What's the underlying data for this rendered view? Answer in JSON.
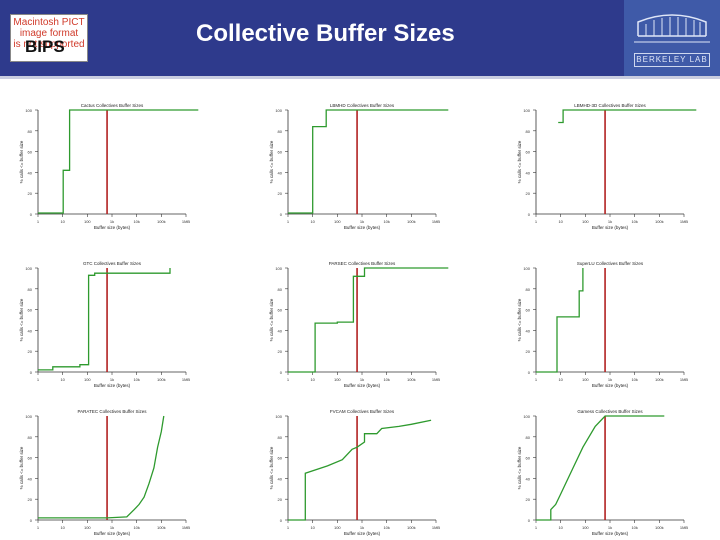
{
  "header": {
    "title": "Collective Buffer Sizes",
    "bips_logo": {
      "placeholder_lines": [
        "Macintosh PICT",
        "image format",
        "is not supported"
      ],
      "text": "BIPS"
    },
    "lab_logo": {
      "text": "BERKELEY LAB"
    }
  },
  "colors": {
    "header_bg": "#2e3a8c",
    "series": "#2e9a2e",
    "marker": "#b22222"
  },
  "chart_data": [
    {
      "type": "line",
      "title": "Cactus Collectives Buffer Sizes",
      "xlabel": "Buffer size (bytes)",
      "ylabel": "% calls <= buffer size",
      "x_ticks": [
        "1",
        "10",
        "100",
        "1k",
        "10k",
        "100k",
        "1MB"
      ],
      "y_ticks": [
        "0",
        "20",
        "40",
        "60",
        "80",
        "100"
      ],
      "ylim": [
        0,
        100
      ],
      "marker_x": 2.8,
      "series": [
        {
          "values": [
            [
              0,
              1
            ],
            [
              1.02,
              1
            ],
            [
              1.02,
              42
            ],
            [
              1.28,
              42
            ],
            [
              1.28,
              100
            ],
            [
              6.5,
              100
            ]
          ]
        }
      ]
    },
    {
      "type": "line",
      "title": "LBMHD Collectives Buffer Sizes",
      "xlabel": "Buffer size (bytes)",
      "ylabel": "% calls <= buffer size",
      "x_ticks": [
        "1",
        "10",
        "100",
        "1k",
        "10k",
        "100k",
        "1MB"
      ],
      "y_ticks": [
        "0",
        "20",
        "40",
        "60",
        "80",
        "100"
      ],
      "ylim": [
        0,
        100
      ],
      "marker_x": 2.8,
      "series": [
        {
          "values": [
            [
              0,
              1
            ],
            [
              1.0,
              1
            ],
            [
              1.0,
              84
            ],
            [
              1.55,
              84
            ],
            [
              1.55,
              100
            ],
            [
              6.5,
              100
            ]
          ]
        }
      ]
    },
    {
      "type": "line",
      "title": "LBMHD-3D Collectives Buffer Sizes",
      "xlabel": "Buffer size (bytes)",
      "ylabel": "% calls <= buffer size",
      "x_ticks": [
        "1",
        "10",
        "100",
        "1k",
        "10k",
        "100k",
        "1MB"
      ],
      "y_ticks": [
        "0",
        "20",
        "40",
        "60",
        "80",
        "100"
      ],
      "ylim": [
        0,
        100
      ],
      "marker_x": 2.8,
      "series": [
        {
          "values": [
            [
              0.9,
              88
            ],
            [
              1.1,
              88
            ],
            [
              1.1,
              100
            ],
            [
              6.5,
              100
            ]
          ]
        }
      ]
    },
    {
      "type": "line",
      "title": "GTC Collectives Buffer Sizes",
      "xlabel": "Buffer size (bytes)",
      "ylabel": "% calls <= buffer size",
      "x_ticks": [
        "1",
        "10",
        "100",
        "1k",
        "10k",
        "100k",
        "1MB"
      ],
      "y_ticks": [
        "0",
        "20",
        "40",
        "60",
        "80",
        "100"
      ],
      "ylim": [
        0,
        100
      ],
      "marker_x": 2.8,
      "series": [
        {
          "values": [
            [
              0,
              2
            ],
            [
              0.6,
              2
            ],
            [
              0.6,
              5
            ],
            [
              1.7,
              5
            ],
            [
              1.7,
              7
            ],
            [
              2.05,
              7
            ],
            [
              2.05,
              93
            ],
            [
              2.3,
              93
            ],
            [
              2.3,
              95
            ],
            [
              5.35,
              95
            ],
            [
              5.35,
              100
            ]
          ]
        }
      ]
    },
    {
      "type": "line",
      "title": "PARSEC Collectives Buffer Sizes",
      "xlabel": "Buffer size (bytes)",
      "ylabel": "% calls <= buffer size",
      "x_ticks": [
        "1",
        "10",
        "100",
        "1k",
        "10k",
        "100k",
        "1MB"
      ],
      "y_ticks": [
        "0",
        "20",
        "40",
        "60",
        "80",
        "100"
      ],
      "ylim": [
        0,
        100
      ],
      "marker_x": 2.8,
      "series": [
        {
          "values": [
            [
              0,
              0
            ],
            [
              1.1,
              0
            ],
            [
              1.1,
              47
            ],
            [
              2.0,
              47
            ],
            [
              2.0,
              48
            ],
            [
              2.65,
              48
            ],
            [
              2.65,
              92
            ],
            [
              3.1,
              92
            ],
            [
              3.1,
              100
            ],
            [
              6.5,
              100
            ]
          ]
        }
      ]
    },
    {
      "type": "line",
      "title": "SuperLU Collectives Buffer Sizes",
      "xlabel": "Buffer size (bytes)",
      "ylabel": "% calls <= buffer size",
      "x_ticks": [
        "1",
        "10",
        "100",
        "1k",
        "10k",
        "100k",
        "1MB"
      ],
      "y_ticks": [
        "0",
        "20",
        "40",
        "60",
        "80",
        "100"
      ],
      "ylim": [
        0,
        100
      ],
      "marker_x": 2.8,
      "series": [
        {
          "values": [
            [
              0,
              0
            ],
            [
              0.85,
              0
            ],
            [
              0.85,
              53
            ],
            [
              1.75,
              53
            ],
            [
              1.75,
              78
            ],
            [
              1.9,
              78
            ],
            [
              1.9,
              100
            ]
          ]
        }
      ]
    },
    {
      "type": "line",
      "title": "PARATEC Collectives Buffer Sizes",
      "xlabel": "Buffer size (bytes)",
      "ylabel": "% calls <= buffer size",
      "x_ticks": [
        "1",
        "10",
        "100",
        "1k",
        "10k",
        "100k",
        "1MB"
      ],
      "y_ticks": [
        "0",
        "20",
        "40",
        "60",
        "80",
        "100"
      ],
      "ylim": [
        0,
        100
      ],
      "marker_x": 2.8,
      "series": [
        {
          "values": [
            [
              0,
              2
            ],
            [
              2.8,
              2
            ],
            [
              3.6,
              3
            ],
            [
              3.9,
              10
            ],
            [
              4.1,
              15
            ],
            [
              4.3,
              22
            ],
            [
              4.5,
              35
            ],
            [
              4.7,
              50
            ],
            [
              4.85,
              70
            ],
            [
              5.0,
              85
            ],
            [
              5.1,
              100
            ]
          ]
        }
      ]
    },
    {
      "type": "line",
      "title": "FVCAM Collectives Buffer Sizes",
      "xlabel": "Buffer size (bytes)",
      "ylabel": "% calls <= buffer size",
      "x_ticks": [
        "1",
        "10",
        "100",
        "1k",
        "10k",
        "100k",
        "1MB"
      ],
      "y_ticks": [
        "0",
        "20",
        "40",
        "60",
        "80",
        "100"
      ],
      "ylim": [
        0,
        100
      ],
      "marker_x": 2.8,
      "series": [
        {
          "values": [
            [
              0,
              0
            ],
            [
              0.7,
              0
            ],
            [
              0.7,
              45
            ],
            [
              1.6,
              52
            ],
            [
              2.2,
              58
            ],
            [
              2.6,
              68
            ],
            [
              2.8,
              70
            ],
            [
              3.1,
              75
            ],
            [
              3.1,
              83
            ],
            [
              3.6,
              83
            ],
            [
              3.8,
              88
            ],
            [
              4.5,
              90
            ],
            [
              5.0,
              92
            ],
            [
              5.8,
              96
            ]
          ]
        }
      ]
    },
    {
      "type": "line",
      "title": "Gamess Collectives Buffer Sizes",
      "xlabel": "Buffer size (bytes)",
      "ylabel": "% calls <= buffer size",
      "x_ticks": [
        "1",
        "10",
        "100",
        "1k",
        "10k",
        "100k",
        "1MB"
      ],
      "y_ticks": [
        "0",
        "20",
        "40",
        "60",
        "80",
        "100"
      ],
      "ylim": [
        0,
        100
      ],
      "marker_x": 2.8,
      "series": [
        {
          "values": [
            [
              0,
              0
            ],
            [
              0.6,
              0
            ],
            [
              0.6,
              10
            ],
            [
              0.8,
              15
            ],
            [
              1.0,
              25
            ],
            [
              1.2,
              35
            ],
            [
              1.5,
              50
            ],
            [
              1.9,
              70
            ],
            [
              2.4,
              90
            ],
            [
              2.8,
              100
            ],
            [
              5.2,
              100
            ]
          ]
        }
      ]
    }
  ]
}
